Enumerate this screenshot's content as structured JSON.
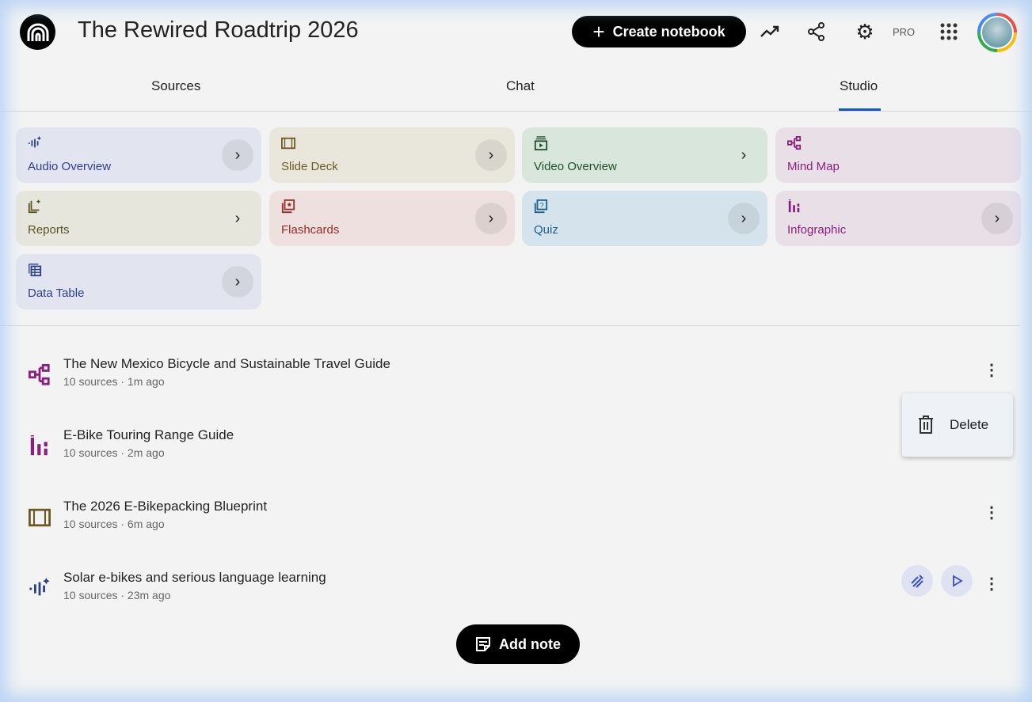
{
  "header": {
    "title": "The Rewired Roadtrip 2026",
    "create_label": "Create notebook",
    "pro_label": "PRO"
  },
  "tabs": [
    {
      "label": "Sources"
    },
    {
      "label": "Chat"
    },
    {
      "label": "Studio",
      "active": true
    }
  ],
  "studio_cards": [
    {
      "label": "Audio Overview",
      "icon": "audio-waveform-sparkle-icon",
      "color": "#2b3f8c",
      "bg": "#e2e5ef"
    },
    {
      "label": "Slide Deck",
      "icon": "slides-icon",
      "color": "#6b5a24",
      "bg": "#e9e7dc"
    },
    {
      "label": "Video Overview",
      "icon": "video-play-icon",
      "color": "#1e5128",
      "bg": "#d9e6dc"
    },
    {
      "label": "Mind Map",
      "icon": "mind-map-icon",
      "color": "#8a1f7d",
      "bg": "#e8dfe7"
    },
    {
      "label": "Reports",
      "icon": "reports-icon",
      "color": "#5a5424",
      "bg": "#e7e6dc"
    },
    {
      "label": "Flashcards",
      "icon": "flashcards-icon",
      "color": "#9a2b2b",
      "bg": "#ede0de"
    },
    {
      "label": "Quiz",
      "icon": "quiz-icon",
      "color": "#1b5f8c",
      "bg": "#d5e4ec"
    },
    {
      "label": "Infographic",
      "icon": "infographic-icon",
      "color": "#8a1f7d",
      "bg": "#e8dfe7"
    },
    {
      "label": "Data Table",
      "icon": "table-icon",
      "color": "#2b3f8c",
      "bg": "#e2e5ef"
    }
  ],
  "items": [
    {
      "title": "The New Mexico Bicycle and Sustainable Travel Guide",
      "meta": "10 sources · 1m ago",
      "icon": "mind-map-icon"
    },
    {
      "title": "E-Bike Touring Range Guide",
      "meta": "10 sources · 2m ago",
      "icon": "infographic-icon"
    },
    {
      "title": "The 2026 E-Bikepacking Blueprint",
      "meta": "10 sources · 6m ago",
      "icon": "slides-icon"
    },
    {
      "title": "Solar e-bikes and serious language learning",
      "meta": "10 sources · 23m ago",
      "icon": "audio-waveform-sparkle-icon"
    }
  ],
  "context_menu": {
    "delete_label": "Delete"
  },
  "add_note_label": "Add note",
  "colors": {
    "accent": "#0b57d0"
  }
}
